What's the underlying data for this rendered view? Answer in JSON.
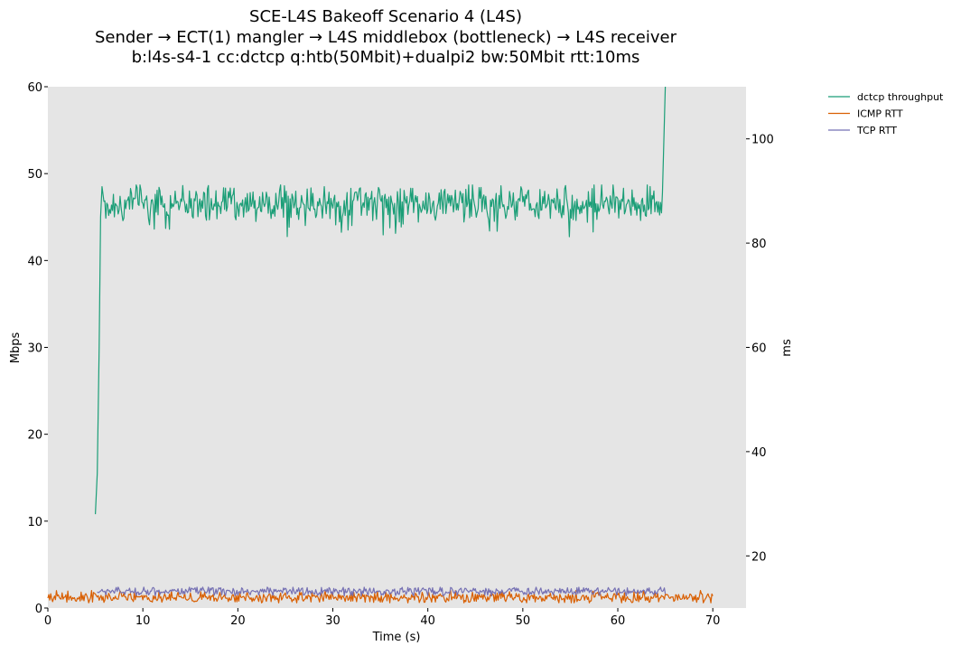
{
  "chart_data": {
    "type": "line",
    "title_lines": [
      "SCE-L4S Bakeoff Scenario 4 (L4S)",
      "Sender → ECT(1) mangler → L4S middlebox (bottleneck) → L4S receiver",
      "b:l4s-s4-1 cc:dctcp q:htb(50Mbit)+dualpi2 bw:50Mbit rtt:10ms"
    ],
    "xlabel": "Time (s)",
    "ylabel_left": "Mbps",
    "ylabel_right": "ms",
    "xlim": [
      0,
      73.5
    ],
    "ylim_left": [
      0,
      60
    ],
    "ylim_right": [
      10,
      110
    ],
    "xticks": [
      0,
      10,
      20,
      30,
      40,
      50,
      60,
      70
    ],
    "yticks_left": [
      0,
      10,
      20,
      30,
      40,
      50,
      60
    ],
    "yticks_right": [
      20,
      40,
      60,
      80,
      100
    ],
    "legend_position": "outside-top-right",
    "background": "#e5e5e5",
    "series": [
      {
        "name": "dctcp throughput",
        "axis": "left",
        "color": "#1b9e77",
        "x_start": 5.0,
        "x_end": 65.0,
        "ramp": [
          [
            5.0,
            10.8
          ],
          [
            5.2,
            15.5
          ],
          [
            5.4,
            30.0
          ],
          [
            5.55,
            45.0
          ],
          [
            5.7,
            48.5
          ],
          [
            5.9,
            46.8
          ]
        ],
        "steady_mean": 46.5,
        "steady_spread": 1.3,
        "steady_min": 42.7,
        "steady_max": 48.7,
        "tail": [
          [
            64.7,
            47.8
          ],
          [
            65.0,
            60.0
          ]
        ]
      },
      {
        "name": "ICMP RTT",
        "axis": "right",
        "color": "#d95f02",
        "x_start": 0.0,
        "x_end": 70.0,
        "mean_ms": 12.0,
        "spread_ms": 0.9,
        "min_ms": 11.0,
        "peak_ms": 13.5
      },
      {
        "name": "TCP RTT",
        "axis": "right",
        "color": "#7570b3",
        "x_start": 5.2,
        "x_end": 65.0,
        "mean_ms": 13.2,
        "spread_ms": 0.7,
        "min_ms": 11.0,
        "peak_ms": 14.0
      }
    ]
  }
}
